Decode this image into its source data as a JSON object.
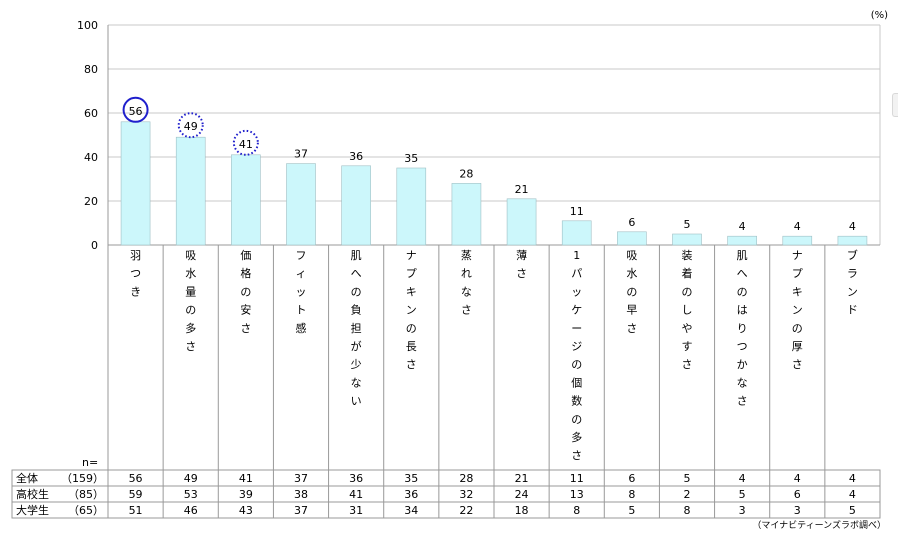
{
  "chart_data": {
    "type": "bar",
    "unit_label": "(%)",
    "ylim": [
      0,
      100
    ],
    "yticks": [
      0,
      20,
      40,
      60,
      80,
      100
    ],
    "grid": true,
    "categories": [
      "羽つき",
      "吸水量の多さ",
      "価格の安さ",
      "フィット感",
      "肌への負担が少ない",
      "ナプキンの長さ",
      "蒸れなさ",
      "薄さ",
      "1パッケージの個数の多さ",
      "吸水の早さ",
      "装着のしやすさ",
      "肌へのはりつかなさ",
      "ナプキンの厚さ",
      "ブランド"
    ],
    "values": [
      56,
      49,
      41,
      37,
      36,
      35,
      28,
      21,
      11,
      6,
      5,
      4,
      4,
      4
    ],
    "bar_color": "#ccf7fb",
    "bar_edge_color": "#9fbfc4",
    "highlights": [
      {
        "index": 0,
        "style": "solid",
        "color": "#1f1fcc"
      },
      {
        "index": 1,
        "style": "dotted",
        "color": "#1f1fcc"
      },
      {
        "index": 2,
        "style": "dotted",
        "color": "#1f1fcc"
      }
    ],
    "table": {
      "n_label": "n=",
      "rows": [
        {
          "label": "全体",
          "n": "（159）",
          "values": [
            56,
            49,
            41,
            37,
            36,
            35,
            28,
            21,
            11,
            6,
            5,
            4,
            4,
            4
          ]
        },
        {
          "label": "高校生",
          "n": "（85）",
          "values": [
            59,
            53,
            39,
            38,
            41,
            36,
            32,
            24,
            13,
            8,
            2,
            5,
            6,
            4
          ]
        },
        {
          "label": "大学生",
          "n": "（65）",
          "values": [
            51,
            46,
            43,
            37,
            31,
            34,
            22,
            18,
            8,
            5,
            8,
            3,
            3,
            5
          ]
        }
      ]
    },
    "source": "（マイナビティーンズラボ調べ）"
  }
}
